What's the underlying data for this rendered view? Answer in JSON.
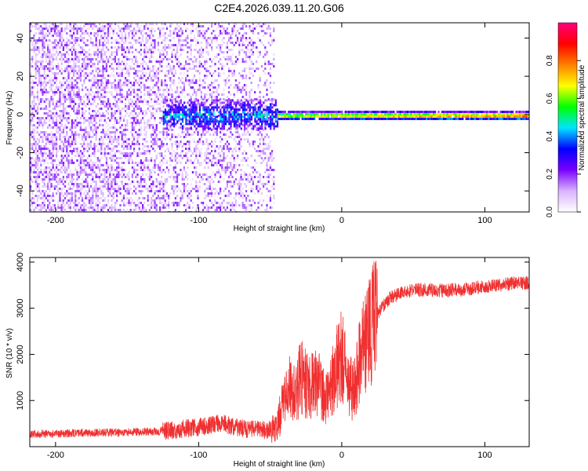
{
  "title": "C2E4.2026.039.11.20.G06",
  "chart_data": [
    {
      "type": "heatmap",
      "xlabel": "Height of straight line (km)",
      "ylabel": "Frequency (Hz)",
      "xlim": [
        -218,
        131
      ],
      "ylim": [
        -51,
        48
      ],
      "x_ticks": [
        -200,
        -100,
        0,
        100
      ],
      "x_tick_labels": [
        "-200",
        "-100",
        "0",
        "100"
      ],
      "y_ticks": [
        -40,
        -20,
        0,
        20,
        40
      ],
      "y_tick_labels": [
        "-40",
        "-20",
        "0",
        "20",
        "40"
      ],
      "colorbar": {
        "label": "Normalized spectral amplitude",
        "range": [
          0,
          1
        ],
        "ticks": [
          0.0,
          0.2,
          0.4,
          0.6,
          0.8
        ],
        "tick_labels": [
          "0.0",
          "0.2",
          "0.4",
          "0.6",
          "0.8"
        ],
        "colors": [
          "#ffffff",
          "#d9b3ff",
          "#7a00ff",
          "#0000ff",
          "#00e5ff",
          "#00ff00",
          "#ffff00",
          "#ff8000",
          "#ff0000",
          "#ff0080"
        ]
      },
      "regions": [
        {
          "name": "broadband noise",
          "x_range": [
            -218,
            -48
          ],
          "y_range": [
            -51,
            48
          ],
          "amplitude": 0.2
        },
        {
          "name": "carrier spread",
          "x_range": [
            -125,
            -45
          ],
          "y_range": [
            -8,
            8
          ],
          "amplitude": 0.4
        },
        {
          "name": "carrier line",
          "x_range": [
            -45,
            131
          ],
          "y_range": [
            -2,
            2
          ],
          "amplitude": 0.7
        }
      ]
    },
    {
      "type": "line",
      "xlabel": "Height of straight line (km)",
      "ylabel": "SNR (10 * v/v)",
      "xlim": [
        -218,
        131
      ],
      "ylim": [
        0,
        4100
      ],
      "x_ticks": [
        -200,
        -100,
        0,
        100
      ],
      "x_tick_labels": [
        "-200",
        "-100",
        "0",
        "100"
      ],
      "y_ticks": [
        1000,
        2000,
        3000,
        4000
      ],
      "y_tick_labels": [
        "1000",
        "2000",
        "3000",
        "4000"
      ],
      "color": "#f03030",
      "series": [
        {
          "name": "SNR",
          "x": [
            -218,
            -200,
            -180,
            -160,
            -140,
            -130,
            -120,
            -110,
            -100,
            -95,
            -90,
            -85,
            -80,
            -75,
            -70,
            -65,
            -60,
            -55,
            -50,
            -48,
            -46,
            -44,
            -42,
            -40,
            -38,
            -36,
            -34,
            -32,
            -30,
            -28,
            -26,
            -24,
            -22,
            -20,
            -18,
            -16,
            -14,
            -12,
            -10,
            -8,
            -6,
            -4,
            -2,
            0,
            2,
            4,
            6,
            8,
            10,
            12,
            14,
            16,
            18,
            20,
            22,
            24,
            26,
            28,
            30,
            35,
            40,
            45,
            50,
            60,
            70,
            80,
            90,
            100,
            110,
            120,
            131
          ],
          "y": [
            280,
            280,
            300,
            310,
            320,
            330,
            360,
            390,
            420,
            450,
            480,
            510,
            480,
            430,
            400,
            380,
            370,
            360,
            360,
            380,
            450,
            600,
            800,
            1000,
            1200,
            1300,
            1100,
            1150,
            1400,
            1500,
            1400,
            1350,
            1300,
            1450,
            1500,
            1350,
            1250,
            1150,
            1100,
            1250,
            1500,
            1700,
            1900,
            2000,
            1700,
            1500,
            1300,
            1200,
            1400,
            1750,
            2000,
            2200,
            2400,
            2550,
            2700,
            2800,
            2900,
            3000,
            3100,
            3250,
            3300,
            3350,
            3400,
            3400,
            3380,
            3400,
            3420,
            3480,
            3500,
            3550,
            3550
          ]
        }
      ]
    }
  ]
}
